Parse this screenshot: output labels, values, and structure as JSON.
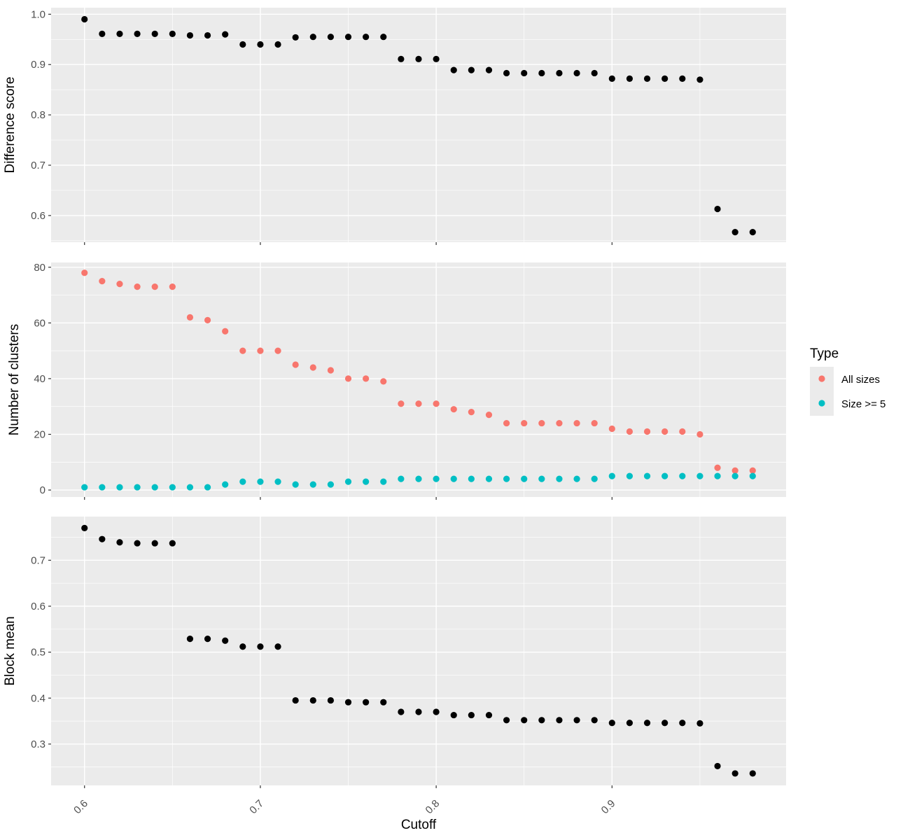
{
  "chart_data": {
    "type": "scatter",
    "xlabel": "Cutoff",
    "x_ticks": [
      0.6,
      0.7,
      0.8,
      0.9
    ],
    "x_tick_labels": [
      "0.6",
      "0.7",
      "0.8",
      "0.9"
    ],
    "xlim": [
      0.581,
      0.999
    ],
    "grid": true,
    "background": "#ebebeb",
    "x": [
      0.6,
      0.61,
      0.62,
      0.63,
      0.64,
      0.65,
      0.66,
      0.67,
      0.68,
      0.69,
      0.7,
      0.71,
      0.72,
      0.73,
      0.74,
      0.75,
      0.76,
      0.77,
      0.78,
      0.79,
      0.8,
      0.81,
      0.82,
      0.83,
      0.84,
      0.85,
      0.86,
      0.87,
      0.88,
      0.89,
      0.9,
      0.91,
      0.92,
      0.93,
      0.94,
      0.95,
      0.96,
      0.97,
      0.98
    ],
    "panels": [
      {
        "ylabel": "Difference score",
        "ylim": [
          0.547,
          1.013
        ],
        "y_ticks": [
          0.6,
          0.7,
          0.8,
          0.9,
          1.0
        ],
        "y_tick_labels": [
          "0.6",
          "0.7",
          "0.8",
          "0.9",
          "1.0"
        ],
        "series": [
          {
            "color": "#000000",
            "values": [
              0.99,
              0.961,
              0.961,
              0.961,
              0.961,
              0.961,
              0.958,
              0.958,
              0.96,
              0.94,
              0.94,
              0.94,
              0.954,
              0.955,
              0.955,
              0.955,
              0.955,
              0.955,
              0.911,
              0.911,
              0.911,
              0.889,
              0.889,
              0.889,
              0.883,
              0.883,
              0.883,
              0.883,
              0.883,
              0.883,
              0.872,
              0.872,
              0.872,
              0.872,
              0.872,
              0.87,
              0.613,
              0.567,
              0.567
            ]
          }
        ]
      },
      {
        "ylabel": "Number of clusters",
        "ylim": [
          -2.5,
          81.7
        ],
        "y_ticks": [
          0,
          20,
          40,
          60,
          80
        ],
        "y_tick_labels": [
          "0",
          "20",
          "40",
          "60",
          "80"
        ],
        "series": [
          {
            "name": "All sizes",
            "color": "#f8766d",
            "values": [
              78,
              75,
              74,
              73,
              73,
              73,
              62,
              61,
              57,
              50,
              50,
              50,
              45,
              44,
              43,
              40,
              40,
              39,
              31,
              31,
              31,
              29,
              28,
              27,
              24,
              24,
              24,
              24,
              24,
              24,
              22,
              21,
              21,
              21,
              21,
              20,
              8,
              7,
              7
            ]
          },
          {
            "name": "Size >= 5",
            "color": "#00bfc4",
            "values": [
              1,
              1,
              1,
              1,
              1,
              1,
              1,
              1,
              2,
              3,
              3,
              3,
              2,
              2,
              2,
              3,
              3,
              3,
              4,
              4,
              4,
              4,
              4,
              4,
              4,
              4,
              4,
              4,
              4,
              4,
              5,
              5,
              5,
              5,
              5,
              5,
              5,
              5,
              5
            ]
          }
        ]
      },
      {
        "ylabel": "Block mean",
        "ylim": [
          0.21,
          0.795
        ],
        "y_ticks": [
          0.3,
          0.4,
          0.5,
          0.6,
          0.7
        ],
        "y_tick_labels": [
          "0.3",
          "0.4",
          "0.5",
          "0.6",
          "0.7"
        ],
        "series": [
          {
            "color": "#000000",
            "values": [
              0.77,
              0.746,
              0.739,
              0.737,
              0.737,
              0.737,
              0.529,
              0.529,
              0.525,
              0.512,
              0.512,
              0.512,
              0.395,
              0.395,
              0.395,
              0.391,
              0.391,
              0.391,
              0.37,
              0.37,
              0.37,
              0.363,
              0.363,
              0.363,
              0.352,
              0.352,
              0.352,
              0.352,
              0.352,
              0.352,
              0.346,
              0.346,
              0.346,
              0.346,
              0.346,
              0.345,
              0.252,
              0.236,
              0.236
            ]
          }
        ]
      }
    ],
    "legend": {
      "title": "Type",
      "placement": "right",
      "entries": [
        {
          "label": "All sizes",
          "color": "#f8766d"
        },
        {
          "label": "Size >= 5",
          "color": "#00bfc4"
        }
      ]
    }
  }
}
